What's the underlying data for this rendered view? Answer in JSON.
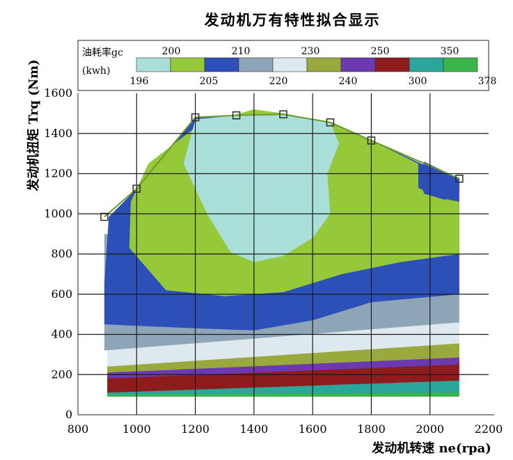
{
  "chart_data": {
    "type": "contour",
    "title": "发动机万有特性拟合显示",
    "xlabel": "发动机转速 ne(rpa)",
    "ylabel": "发动机扭矩 Trq (Nm)",
    "xlim": [
      800,
      2200
    ],
    "ylim": [
      0,
      1600
    ],
    "x_ticks": [
      "800",
      "1000",
      "1200",
      "1400",
      "1600",
      "1800",
      "2000",
      "2200"
    ],
    "y_ticks": [
      "0",
      "200",
      "400",
      "600",
      "800",
      "1000",
      "1200",
      "1400",
      "1600"
    ],
    "legend": {
      "title_line1": "油耗率gc",
      "title_line2": "(kwh)",
      "placement": "top",
      "top_labels": [
        "200",
        "210",
        "230",
        "250",
        "350"
      ],
      "bottom_labels": [
        "196",
        "205",
        "220",
        "240",
        "300",
        "378"
      ],
      "bands": [
        {
          "range": "196-200",
          "color": "#a9dfd8"
        },
        {
          "range": "200-205",
          "color": "#95c93a"
        },
        {
          "range": "205-210",
          "color": "#2d4fb8"
        },
        {
          "range": "210-220",
          "color": "#8ea5b8"
        },
        {
          "range": "220-230",
          "color": "#dde9ef"
        },
        {
          "range": "230-240",
          "color": "#9aa93d"
        },
        {
          "range": "240-250",
          "color": "#6c39b0"
        },
        {
          "range": "250-300",
          "color": "#8e1c1c"
        },
        {
          "range": "300-350",
          "color": "#2aa79a"
        },
        {
          "range": "350-378",
          "color": "#3bb54a"
        }
      ]
    },
    "max_torque_curve": {
      "x": [
        890,
        1000,
        1200,
        1340,
        1500,
        1660,
        1800,
        2100
      ],
      "y": [
        985,
        1125,
        1480,
        1490,
        1495,
        1455,
        1365,
        1175
      ]
    },
    "regions": [
      {
        "band": "196-200",
        "note": "low-consumption island",
        "center_x": 1440,
        "center_y": 1120
      }
    ],
    "grid": true
  }
}
